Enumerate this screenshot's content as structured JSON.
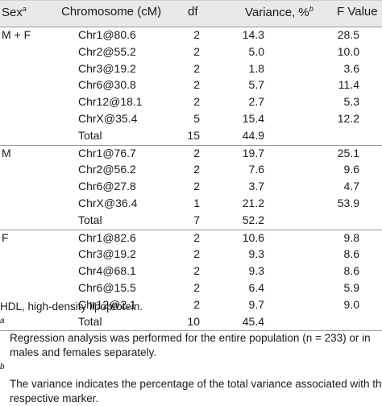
{
  "headers": {
    "sex": "Sex",
    "sex_sup": "a",
    "chromosome": "Chromosome (cM)",
    "df": "df",
    "variance": "Variance, %",
    "variance_sup": "b",
    "f_value": "F Value"
  },
  "groups": [
    {
      "sex": "M + F",
      "rows": [
        {
          "chr": "Chr1@80.6",
          "df": "2",
          "variance": "14.3",
          "f": "28.5"
        },
        {
          "chr": "Chr2@55.2",
          "df": "2",
          "variance": "5.0",
          "f": "10.0"
        },
        {
          "chr": "Chr3@19.2",
          "df": "2",
          "variance": "1.8",
          "f": "3.6"
        },
        {
          "chr": "Chr6@30.8",
          "df": "2",
          "variance": "5.7",
          "f": "11.4"
        },
        {
          "chr": "Chr12@18.1",
          "df": "2",
          "variance": "2.7",
          "f": "5.3"
        },
        {
          "chr": "ChrX@35.4",
          "df": "5",
          "variance": "15.4",
          "f": "12.2"
        },
        {
          "chr": "Total",
          "df": "15",
          "variance": "44.9",
          "f": ""
        }
      ]
    },
    {
      "sex": "M",
      "rows": [
        {
          "chr": "Chr1@76.7",
          "df": "2",
          "variance": "19.7",
          "f": "25.1"
        },
        {
          "chr": "Chr2@56.2",
          "df": "2",
          "variance": "7.6",
          "f": "9.6"
        },
        {
          "chr": "Chr6@27.8",
          "df": "2",
          "variance": "3.7",
          "f": "4.7"
        },
        {
          "chr": "ChrX@36.4",
          "df": "1",
          "variance": "21.2",
          "f": "53.9"
        },
        {
          "chr": "Total",
          "df": "7",
          "variance": "52.2",
          "f": ""
        }
      ]
    },
    {
      "sex": "F",
      "rows": [
        {
          "chr": "Chr1@82.6",
          "df": "2",
          "variance": "10.6",
          "f": "9.8"
        },
        {
          "chr": "Chr3@19.2",
          "df": "2",
          "variance": "9.3",
          "f": "8.6"
        },
        {
          "chr": "Chr4@68.1",
          "df": "2",
          "variance": "9.3",
          "f": "8.6"
        },
        {
          "chr": "Chr6@15.5",
          "df": "2",
          "variance": "6.4",
          "f": "5.9"
        },
        {
          "chr": "Chr12@2.1",
          "df": "2",
          "variance": "9.7",
          "f": "9.0"
        },
        {
          "chr": "Total",
          "df": "10",
          "variance": "45.4",
          "f": ""
        }
      ]
    }
  ],
  "footnotes": {
    "abbrev": "HDL, high-density lipoprotein.",
    "a_mark": "a",
    "a_line1": "Regression analysis was performed for the entire population (n = 233) or in",
    "a_line2": "males and females separately.",
    "b_mark": "b",
    "b_line1": "The variance indicates the percentage of the total variance associated with the",
    "b_line2": "respective marker."
  }
}
